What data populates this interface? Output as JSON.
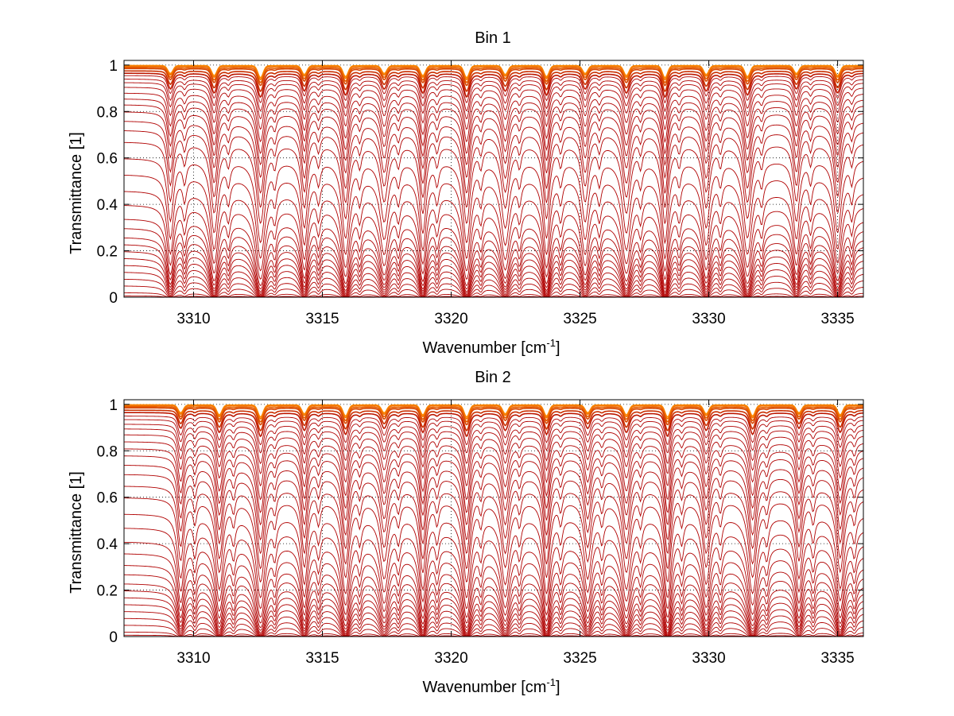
{
  "figure": {
    "background": "#ffffff",
    "line_color": "#b00000",
    "top_color": "#ff8c00",
    "grid_color": "#000000"
  },
  "chart_data": [
    {
      "type": "line",
      "title": "Bin 1",
      "xlabel": "Wavenumber [cm",
      "xlabel_sup": "-1",
      "xlabel_suffix": "]",
      "ylabel": "Transmittance [1]",
      "xlim": [
        3307.3,
        3336.0
      ],
      "ylim": [
        0,
        1.02
      ],
      "xticks": [
        3310,
        3315,
        3320,
        3325,
        3330,
        3335
      ],
      "xtick_labels": [
        "3310",
        "3315",
        "3320",
        "3325",
        "3330",
        "3335"
      ],
      "yticks": [
        0,
        0.2,
        0.4,
        0.6,
        0.8,
        1
      ],
      "ytick_labels": [
        "0",
        "0.2",
        "0.4",
        "0.6",
        "0.8",
        "1"
      ],
      "grid": true,
      "absorption_lines_cm1": [
        3309.1,
        3310.8,
        3312.6,
        3314.3,
        3315.9,
        3317.4,
        3318.9,
        3320.6,
        3322.1,
        3323.7,
        3325.2,
        3326.8,
        3328.3,
        3329.9,
        3331.5,
        3333.4,
        3335.0
      ],
      "series_baselines": [
        0.998,
        0.995,
        0.99,
        0.985,
        0.975,
        0.965,
        0.955,
        0.94,
        0.925,
        0.905,
        0.88,
        0.855,
        0.83,
        0.8,
        0.76,
        0.72,
        0.67,
        0.6,
        0.53,
        0.46,
        0.4,
        0.34,
        0.3,
        0.26,
        0.23,
        0.2,
        0.17,
        0.14,
        0.11,
        0.08,
        0.05,
        0.02,
        0.006
      ]
    },
    {
      "type": "line",
      "title": "Bin 2",
      "xlabel": "Wavenumber [cm",
      "xlabel_sup": "-1",
      "xlabel_suffix": "]",
      "ylabel": "Transmittance [1]",
      "xlim": [
        3307.3,
        3336.0
      ],
      "ylim": [
        0,
        1.02
      ],
      "xticks": [
        3310,
        3315,
        3320,
        3325,
        3330,
        3335
      ],
      "xtick_labels": [
        "3310",
        "3315",
        "3320",
        "3325",
        "3330",
        "3335"
      ],
      "yticks": [
        0,
        0.2,
        0.4,
        0.6,
        0.8,
        1
      ],
      "ytick_labels": [
        "0",
        "0.2",
        "0.4",
        "0.6",
        "0.8",
        "1"
      ],
      "grid": true,
      "absorption_lines_cm1": [
        3309.5,
        3311.0,
        3312.6,
        3314.3,
        3315.9,
        3317.4,
        3318.9,
        3320.6,
        3322.1,
        3323.7,
        3325.3,
        3326.8,
        3328.4,
        3329.9,
        3331.7,
        3333.5,
        3335.1
      ],
      "series_baselines": [
        0.998,
        0.995,
        0.99,
        0.985,
        0.975,
        0.965,
        0.95,
        0.935,
        0.915,
        0.895,
        0.87,
        0.84,
        0.81,
        0.78,
        0.74,
        0.7,
        0.65,
        0.6,
        0.53,
        0.47,
        0.41,
        0.36,
        0.31,
        0.27,
        0.23,
        0.2,
        0.17,
        0.14,
        0.11,
        0.08,
        0.05,
        0.02,
        0.006
      ]
    }
  ]
}
